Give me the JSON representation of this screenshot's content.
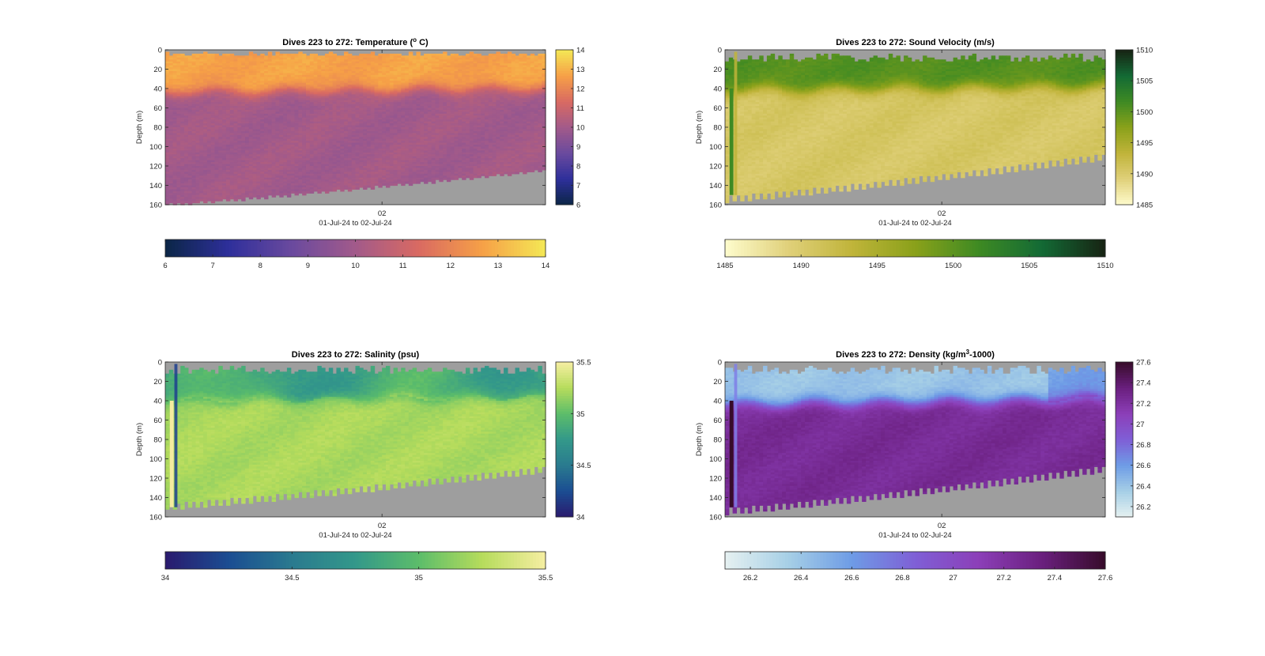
{
  "figure": {
    "background": "#ffffff",
    "nodata_color": "#9e9e9e"
  },
  "chart_data": [
    {
      "type": "heatmap",
      "id": "temperature",
      "title": "Dives 223 to 272: Temperature (",
      "title_super": "o",
      "title_tail": " C)",
      "xlabel": "01-Jul-24 to 02-Jul-24",
      "ylabel": "Depth (m)",
      "x_ticks": [
        "02"
      ],
      "x_tick_fraction": [
        0.57
      ],
      "ylim": [
        0,
        160
      ],
      "y_ticks": [
        0,
        20,
        40,
        60,
        80,
        100,
        120,
        140,
        160
      ],
      "y_reversed": true,
      "colormap": "thermal",
      "colormap_stops": [
        "#0b2646",
        "#2e2f9b",
        "#6a4a9e",
        "#a25a8a",
        "#d96a62",
        "#f6a047",
        "#f4e855"
      ],
      "clim": [
        6,
        14
      ],
      "colorbar_ticks": [
        6,
        7,
        8,
        9,
        10,
        11,
        12,
        13,
        14
      ],
      "profile": {
        "surface_value": 12.7,
        "thermocline_depth_start": 44,
        "thermocline_depth_end": 40,
        "deep_value": 10.0,
        "surface_gap_depth": 5,
        "bottom_depth_start": 160,
        "bottom_depth_end": 125
      }
    },
    {
      "type": "heatmap",
      "id": "sound_velocity",
      "title": "Dives 223 to 272: Sound Velocity (m/s)",
      "xlabel": "01-Jul-24 to 02-Jul-24",
      "ylabel": "Depth (m)",
      "x_ticks": [
        "02"
      ],
      "x_tick_fraction": [
        0.57
      ],
      "ylim": [
        0,
        160
      ],
      "y_ticks": [
        0,
        20,
        40,
        60,
        80,
        100,
        120,
        140,
        160
      ],
      "y_reversed": true,
      "colormap": "speed",
      "colormap_stops": [
        "#fefccd",
        "#e0d07a",
        "#c0b43a",
        "#8aa11a",
        "#3e8a23",
        "#136a35",
        "#172313"
      ],
      "clim": [
        1485,
        1510
      ],
      "colorbar_ticks": [
        1485,
        1490,
        1495,
        1500,
        1505,
        1510
      ],
      "profile": {
        "surface_value": 1500.5,
        "thermocline_depth_start": 42,
        "thermocline_depth_end": 38,
        "deep_value": 1490.5,
        "surface_gap_depth": 10,
        "bottom_depth_start": 155,
        "bottom_depth_end": 112
      }
    },
    {
      "type": "heatmap",
      "id": "salinity",
      "title": "Dives 223 to 272: Salinity (psu)",
      "xlabel": "01-Jul-24 to 02-Jul-24",
      "ylabel": "Depth (m)",
      "x_ticks": [
        "02"
      ],
      "x_tick_fraction": [
        0.57
      ],
      "ylim": [
        0,
        160
      ],
      "y_ticks": [
        0,
        20,
        40,
        60,
        80,
        100,
        120,
        140,
        160
      ],
      "y_reversed": true,
      "colormap": "haline",
      "colormap_stops": [
        "#2a1a6e",
        "#1b4d92",
        "#2a7a8f",
        "#33988a",
        "#5cbd6a",
        "#b6dc5c",
        "#f6eea2"
      ],
      "clim": [
        34,
        35.5
      ],
      "colorbar_ticks": [
        34,
        34.5,
        35,
        35.5
      ],
      "profile": {
        "surface_value": 34.85,
        "thermocline_depth_start": 40,
        "thermocline_depth_end": 36,
        "deep_value": 35.22,
        "surface_gap_depth": 10,
        "bottom_depth_start": 150,
        "bottom_depth_end": 112
      }
    },
    {
      "type": "heatmap",
      "id": "density",
      "title": "Dives 223 to 272: Density (kg/m",
      "title_super": "3",
      "title_tail": "-1000)",
      "xlabel": "01-Jul-24 to 02-Jul-24",
      "ylabel": "Depth (m)",
      "x_ticks": [
        "02"
      ],
      "x_tick_fraction": [
        0.57
      ],
      "ylim": [
        0,
        160
      ],
      "y_ticks": [
        0,
        20,
        40,
        60,
        80,
        100,
        120,
        140,
        160
      ],
      "y_reversed": true,
      "colormap": "dense",
      "colormap_stops": [
        "#e6f1f1",
        "#a6cfe6",
        "#6e9ce6",
        "#7f5fd6",
        "#8c3fb8",
        "#6a1f7e",
        "#370c2a"
      ],
      "clim": [
        26.1,
        27.6
      ],
      "colorbar_ticks": [
        26.2,
        26.4,
        26.6,
        26.8,
        27,
        27.2,
        27.4,
        27.6
      ],
      "profile": {
        "surface_value": 26.4,
        "thermocline_depth_start": 44,
        "thermocline_depth_end": 38,
        "deep_value": 27.25,
        "surface_gap_depth": 10,
        "bottom_depth_start": 155,
        "bottom_depth_end": 112
      }
    }
  ]
}
